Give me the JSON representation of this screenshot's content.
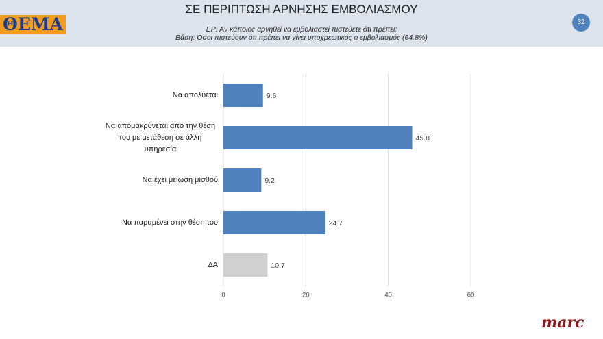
{
  "header": {
    "logo": "ΘΕΜΑ",
    "page_number": "32"
  },
  "footer": {
    "logo": "marc"
  },
  "chart_data": {
    "type": "barh",
    "title": "ΣΕ ΠΕΡΙΠΤΩΣΗ ΑΡΝΗΣΗΣ ΕΜΒΟΛΙΑΣΜΟΥ",
    "subtitle": [
      "ΕΡ: Αν κάποιος αρνηθεί να εμβολιαστεί πιστεύετε ότι πρέπει:",
      "Βάση: Όσοι πιστεύουν ότι πρέπει να γίνει υποχρεωτικός ο εμβολιασμός (64.8%)"
    ],
    "categories": [
      "Να απολύεται",
      "Να απομακρύνεται από την θέση του με μετάθεση σε άλλη υπηρεσία",
      "Να έχει μείωση μισθού",
      "Να παραμένει στην θέση του",
      "ΔΑ"
    ],
    "values": [
      9.6,
      45.8,
      9.2,
      24.7,
      10.7
    ],
    "colors": [
      "#4f81bd",
      "#4f81bd",
      "#4f81bd",
      "#4f81bd",
      "#d0d0d0"
    ],
    "xlim": [
      0,
      60
    ],
    "xticks": [
      0,
      20,
      40,
      60
    ],
    "grid": true
  }
}
